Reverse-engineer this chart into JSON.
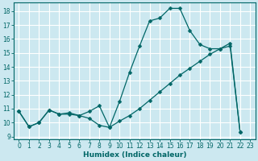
{
  "xlabel": "Humidex (Indice chaleur)",
  "bg_color": "#cce8f0",
  "grid_color": "#ffffff",
  "line_color": "#006666",
  "xlim": [
    -0.5,
    23.5
  ],
  "ylim": [
    8.8,
    18.6
  ],
  "yticks": [
    9,
    10,
    11,
    12,
    13,
    14,
    15,
    16,
    17,
    18
  ],
  "xticks": [
    0,
    1,
    2,
    3,
    4,
    5,
    6,
    7,
    8,
    9,
    10,
    11,
    12,
    13,
    14,
    15,
    16,
    17,
    18,
    19,
    20,
    21,
    22,
    23
  ],
  "curve1_x": [
    0,
    1,
    2,
    3,
    4,
    5,
    6,
    7,
    8,
    9,
    10,
    11,
    12,
    13,
    14,
    15,
    16,
    17,
    18,
    19,
    20,
    21,
    22
  ],
  "curve1_y": [
    10.8,
    9.7,
    10.0,
    10.9,
    10.6,
    10.7,
    10.5,
    10.8,
    11.2,
    9.65,
    11.5,
    13.6,
    15.5,
    17.3,
    17.5,
    18.2,
    18.2,
    16.6,
    15.6,
    15.3,
    15.3,
    15.7,
    9.3
  ],
  "curve2_x": [
    0,
    1,
    2,
    3,
    4,
    5,
    6,
    7,
    8,
    9,
    10,
    11,
    12,
    13,
    14,
    15,
    16,
    17,
    18,
    19,
    20,
    21,
    22
  ],
  "curve2_y": [
    10.8,
    9.7,
    10.0,
    10.9,
    10.6,
    10.6,
    10.5,
    10.3,
    9.8,
    9.65,
    10.1,
    10.5,
    11.0,
    11.6,
    12.2,
    12.8,
    13.4,
    13.9,
    14.4,
    14.9,
    15.3,
    15.5,
    9.3
  ],
  "markersize": 2.5
}
